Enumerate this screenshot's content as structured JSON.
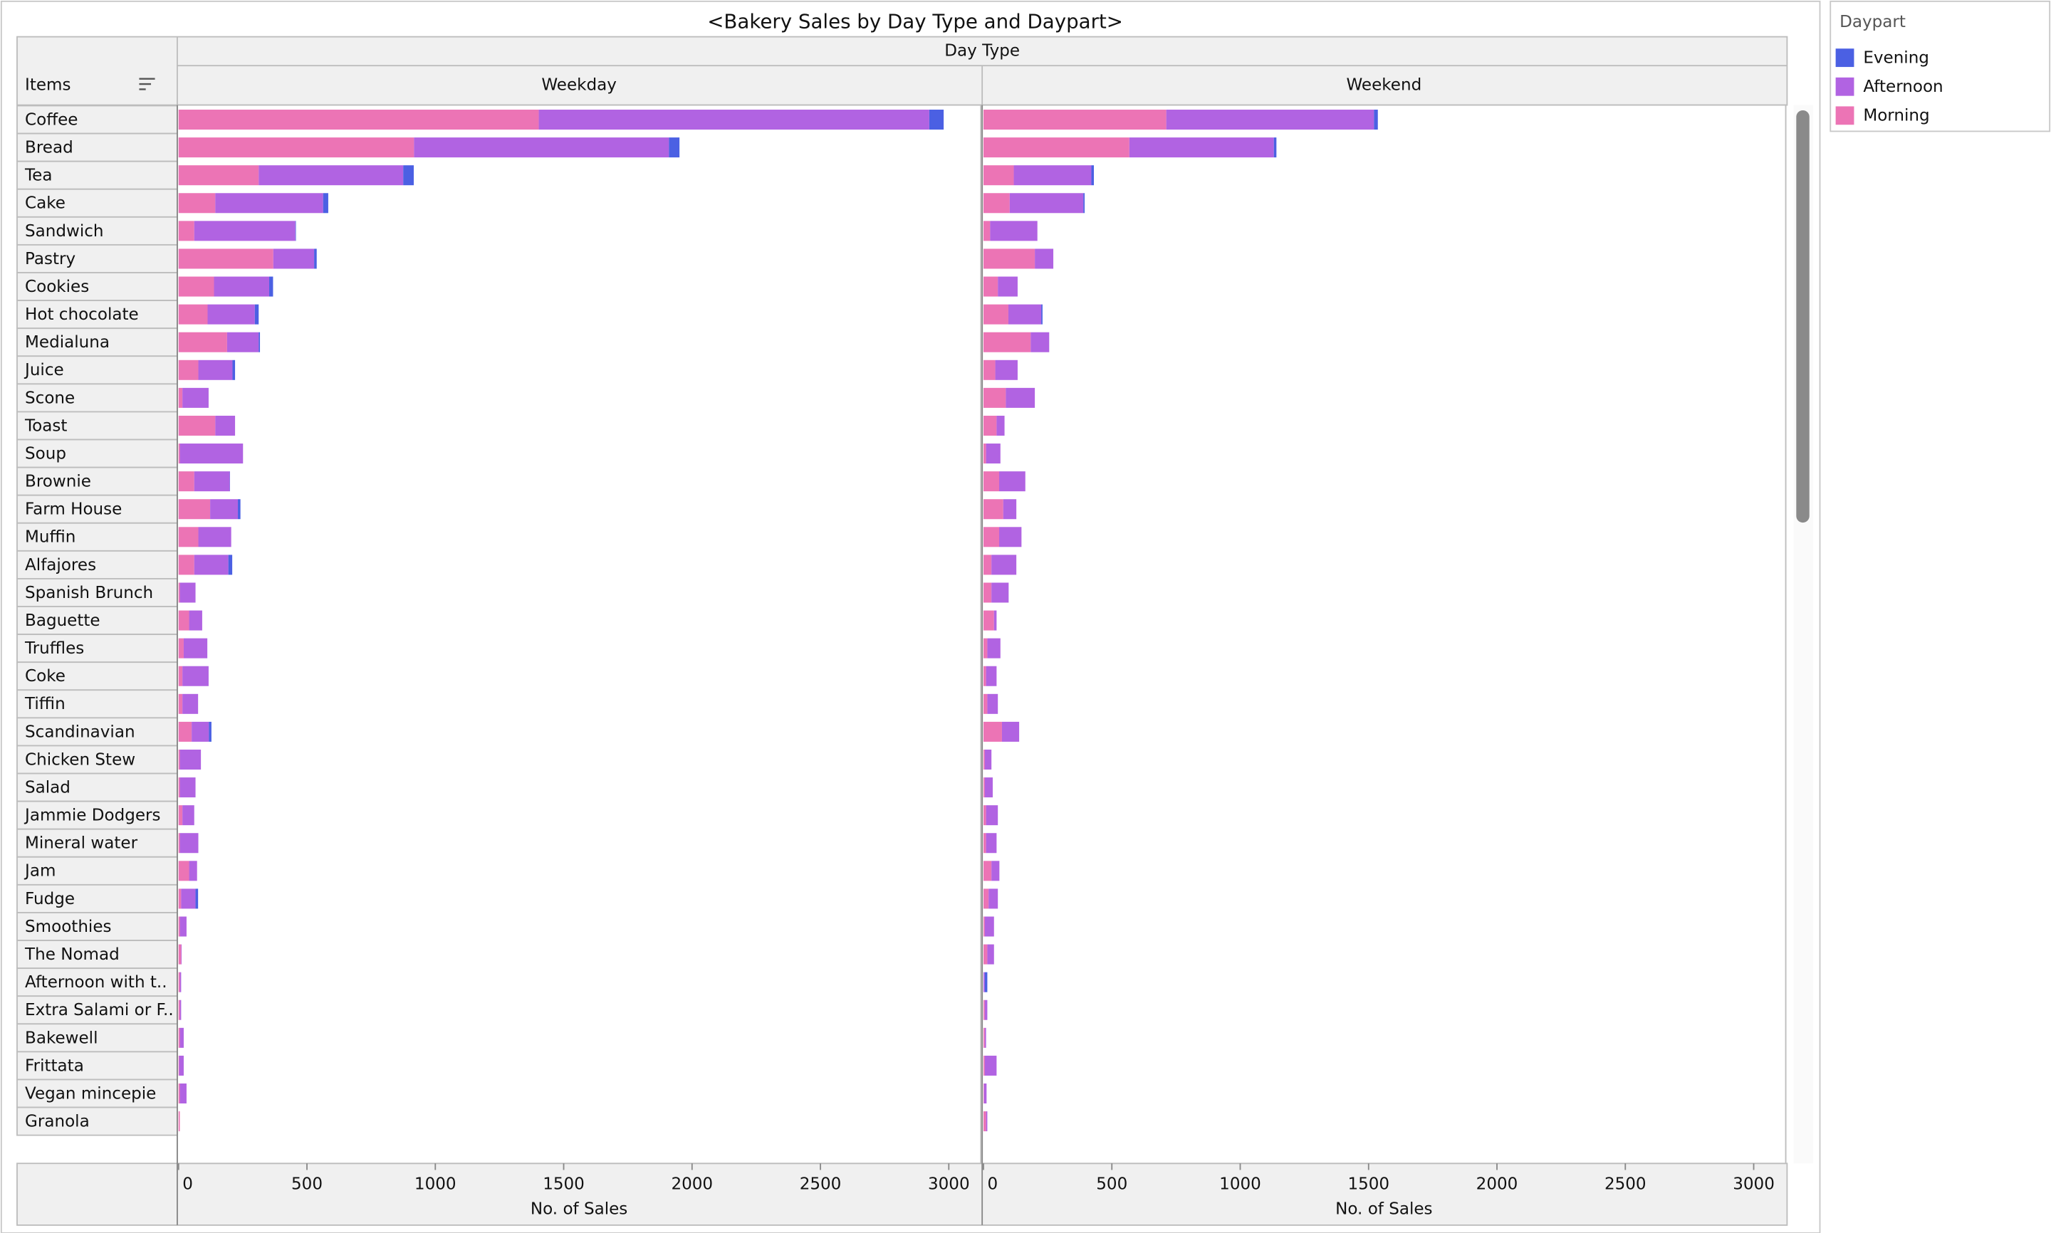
{
  "chart_data": {
    "type": "bar",
    "title": "<Bakery Sales by Day Type and Daypart>",
    "column_header": "Day Type",
    "row_header": "Items",
    "legend_title": "Daypart",
    "x_label": "No. of Sales",
    "panels": [
      "Weekday",
      "Weekend"
    ],
    "categories": [
      "Coffee",
      "Bread",
      "Tea",
      "Cake",
      "Sandwich",
      "Pastry",
      "Cookies",
      "Hot chocolate",
      "Medialuna",
      "Juice",
      "Scone",
      "Toast",
      "Soup",
      "Brownie",
      "Farm House",
      "Muffin",
      "Alfajores",
      "Spanish Brunch",
      "Baguette",
      "Truffles",
      "Coke",
      "Tiffin",
      "Scandinavian",
      "Chicken Stew",
      "Salad",
      "Jammie Dodgers",
      "Mineral water",
      "Jam",
      "Fudge",
      "Smoothies",
      "The Nomad",
      "Afternoon with t..",
      "Extra Salami or F..",
      "Bakewell",
      "Frittata",
      "Vegan mincepie",
      "Granola"
    ],
    "xlim": [
      0,
      3130
    ],
    "xticks": [
      0,
      500,
      1000,
      1500,
      2000,
      2500,
      3000
    ],
    "series": [
      {
        "name": "Evening",
        "color": "#4b60e3",
        "values": [
          [
            56,
            41,
            41,
            20,
            2,
            10,
            15,
            15,
            5,
            10,
            0,
            0,
            0,
            1,
            10,
            0,
            15,
            0,
            0,
            0,
            0,
            0,
            10,
            0,
            0,
            0,
            0,
            0,
            10,
            0,
            0,
            0,
            0,
            0,
            0,
            0,
            0
          ],
          [
            15,
            10,
            10,
            5,
            0,
            0,
            0,
            5,
            0,
            0,
            0,
            0,
            0,
            0,
            0,
            0,
            0,
            0,
            0,
            0,
            0,
            0,
            0,
            0,
            0,
            0,
            0,
            0,
            0,
            0,
            0,
            10,
            0,
            0,
            0,
            0,
            0
          ]
        ]
      },
      {
        "name": "Afternoon",
        "color": "#b163e2",
        "values": [
          [
            1521,
            993,
            563,
            420,
            394,
            159,
            215,
            184,
            123,
            133,
            102,
            77,
            246,
            138,
            108,
            128,
            133,
            61,
            51,
            92,
            102,
            61,
            67,
            82,
            61,
            46,
            72,
            31,
            56,
            26,
            2,
            5,
            5,
            15,
            18,
            26,
            0
          ],
          [
            809,
            563,
            302,
            287,
            184,
            72,
            77,
            128,
            72,
            87,
            113,
            31,
            56,
            102,
            51,
            87,
            97,
            67,
            10,
            51,
            41,
            41,
            67,
            26,
            31,
            46,
            41,
            31,
            36,
            36,
            26,
            5,
            10,
            5,
            46,
            10,
            5
          ]
        ]
      },
      {
        "name": "Morning",
        "color": "#ec74b5",
        "values": [
          [
            1403,
            917,
            312,
            143,
            61,
            369,
            138,
            113,
            189,
            77,
            15,
            143,
            5,
            61,
            123,
            77,
            61,
            5,
            41,
            20,
            15,
            15,
            51,
            5,
            5,
            15,
            5,
            41,
            10,
            5,
            10,
            5,
            5,
            5,
            2,
            5,
            5
          ],
          [
            712,
            568,
            118,
            102,
            26,
            200,
            56,
            97,
            184,
            46,
            87,
            51,
            10,
            61,
            77,
            61,
            31,
            31,
            41,
            15,
            10,
            15,
            72,
            5,
            5,
            10,
            10,
            31,
            20,
            5,
            15,
            0,
            5,
            5,
            5,
            2,
            10
          ]
        ]
      }
    ]
  }
}
